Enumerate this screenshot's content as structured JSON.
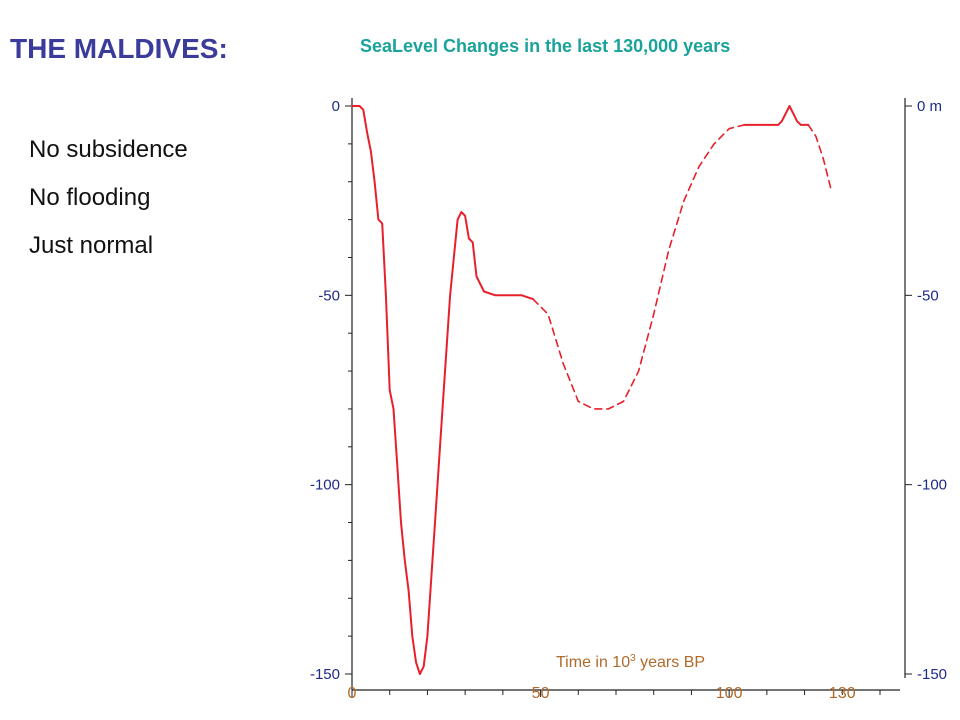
{
  "slide": {
    "title": "THE MALDIVES:",
    "bullets": [
      "No subsidence",
      "No flooding",
      "Just normal"
    ]
  },
  "chart_data": {
    "type": "line",
    "title": "SeaLevel Changes in the last 130,000 years",
    "xlabel_main": "Time in 10",
    "xlabel_sup": "3",
    "xlabel_tail": " years BP",
    "ylabel_unit": "m",
    "x_ticks": [
      0,
      50,
      100,
      130
    ],
    "y_ticks": [
      0,
      -50,
      -100,
      -150
    ],
    "right_y_ticks": [
      "0 m",
      "-50",
      "-100",
      "-150"
    ],
    "xlim": [
      0,
      140
    ],
    "ylim": [
      -150,
      0
    ],
    "color": "#e8202a",
    "series": [
      {
        "style": "solid",
        "points": [
          [
            0,
            0
          ],
          [
            2,
            0
          ],
          [
            3,
            -1
          ],
          [
            4,
            -7
          ],
          [
            5,
            -12
          ],
          [
            6,
            -20
          ],
          [
            7,
            -30
          ],
          [
            8,
            -31
          ],
          [
            9,
            -50
          ],
          [
            10,
            -75
          ],
          [
            11,
            -80
          ],
          [
            12,
            -95
          ],
          [
            13,
            -110
          ],
          [
            14,
            -120
          ],
          [
            15,
            -128
          ],
          [
            16,
            -140
          ],
          [
            17,
            -147
          ],
          [
            18,
            -150
          ],
          [
            19,
            -148
          ],
          [
            20,
            -140
          ],
          [
            22,
            -110
          ],
          [
            24,
            -80
          ],
          [
            26,
            -50
          ],
          [
            28,
            -30
          ],
          [
            29,
            -28
          ],
          [
            30,
            -29
          ],
          [
            31,
            -35
          ],
          [
            32,
            -36
          ],
          [
            33,
            -45
          ],
          [
            35,
            -49
          ],
          [
            38,
            -50
          ],
          [
            45,
            -50
          ],
          [
            48,
            -51
          ]
        ]
      },
      {
        "style": "dashed",
        "points": [
          [
            48,
            -51
          ],
          [
            52,
            -55
          ],
          [
            56,
            -68
          ],
          [
            60,
            -78
          ],
          [
            64,
            -80
          ],
          [
            68,
            -80
          ],
          [
            72,
            -78
          ],
          [
            76,
            -70
          ],
          [
            80,
            -55
          ],
          [
            84,
            -38
          ],
          [
            88,
            -25
          ],
          [
            92,
            -16
          ],
          [
            96,
            -10
          ],
          [
            100,
            -6
          ],
          [
            104,
            -5
          ]
        ]
      },
      {
        "style": "solid",
        "points": [
          [
            104,
            -5
          ],
          [
            113,
            -5
          ],
          [
            114,
            -4
          ],
          [
            115,
            -2
          ],
          [
            116,
            0
          ],
          [
            117,
            -2
          ],
          [
            118,
            -4
          ],
          [
            119,
            -5
          ],
          [
            121,
            -5
          ]
        ]
      },
      {
        "style": "dashed",
        "points": [
          [
            121,
            -5
          ],
          [
            123,
            -8
          ],
          [
            125,
            -14
          ],
          [
            127,
            -22
          ]
        ]
      }
    ]
  }
}
